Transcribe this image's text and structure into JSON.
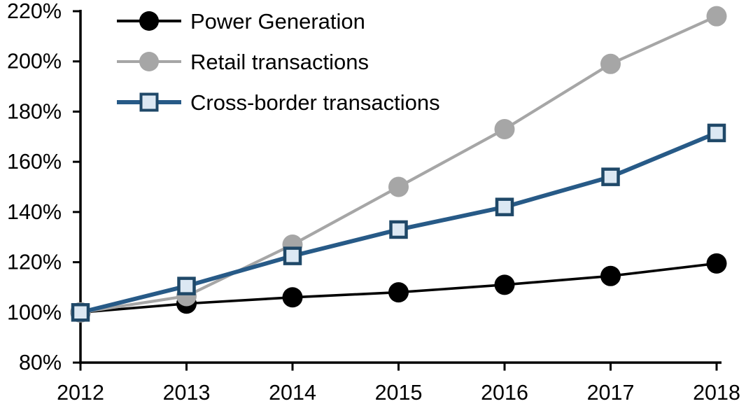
{
  "chart_data": {
    "type": "line",
    "title": "",
    "xlabel": "",
    "ylabel": "",
    "categories": [
      "2012",
      "2013",
      "2014",
      "2015",
      "2016",
      "2017",
      "2018"
    ],
    "series": [
      {
        "name": "Power Generation",
        "color": "#000000",
        "line_width": 3.6,
        "marker": "circle",
        "marker_fill": "#000000",
        "values": [
          100,
          103.5,
          106,
          108,
          111,
          114.5,
          119.5
        ]
      },
      {
        "name": "Retail transactions",
        "color": "#A6A6A6",
        "line_width": 4.2,
        "marker": "circle",
        "marker_fill": "#A6A6A6",
        "values": [
          100,
          106.5,
          127,
          150,
          173,
          199,
          218
        ]
      },
      {
        "name": "Cross-border transactions",
        "color": "#275A87",
        "line_width": 6,
        "marker": "square",
        "marker_fill": "#DCE8F3",
        "marker_border": "#1F4868",
        "values": [
          100,
          110.5,
          122.5,
          133,
          142,
          154,
          171.5
        ]
      }
    ],
    "ylim": [
      80,
      220
    ],
    "yticks": [
      80,
      100,
      120,
      140,
      160,
      180,
      200,
      220
    ],
    "ytick_labels": [
      "80%",
      "100%",
      "120%",
      "140%",
      "160%",
      "180%",
      "200%",
      "220%"
    ],
    "grid": false,
    "legend_position": "top-left-inside",
    "axis_color": "#000000"
  }
}
